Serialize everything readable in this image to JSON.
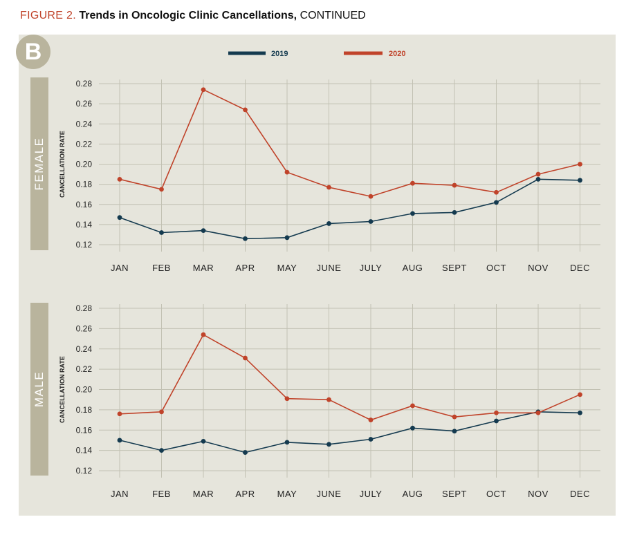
{
  "header": {
    "figure_label": "FIGURE 2.",
    "title": "Trends in Oncologic Clinic Cancellations,",
    "continued": "CONTINUED"
  },
  "panel_letter": "B",
  "legend": [
    {
      "name": "2019",
      "color": "#143a4f"
    },
    {
      "name": "2020",
      "color": "#c0432a"
    }
  ],
  "colors": {
    "panel_bg": "#e6e5dc",
    "grid": "#c2c1b3",
    "side_tab": "#b9b49d"
  },
  "chart_data": [
    {
      "type": "line",
      "panel": "FEMALE",
      "ylabel": "CANCELLATION RATE",
      "categories": [
        "JAN",
        "FEB",
        "MAR",
        "APR",
        "MAY",
        "JUNE",
        "JULY",
        "AUG",
        "SEPT",
        "OCT",
        "NOV",
        "DEC"
      ],
      "yticks": [
        "0.12",
        "0.14",
        "0.16",
        "0.18",
        "0.20",
        "0.22",
        "0.24",
        "0.26",
        "0.28"
      ],
      "ylim": [
        0.12,
        0.28
      ],
      "series": [
        {
          "name": "2019",
          "values": [
            0.147,
            0.132,
            0.134,
            0.126,
            0.127,
            0.141,
            0.143,
            0.151,
            0.152,
            0.162,
            0.185,
            0.184
          ]
        },
        {
          "name": "2020",
          "values": [
            0.185,
            0.175,
            0.274,
            0.254,
            0.192,
            0.177,
            0.168,
            0.181,
            0.179,
            0.172,
            0.19,
            0.2
          ]
        }
      ]
    },
    {
      "type": "line",
      "panel": "MALE",
      "ylabel": "CANCELLATION RATE",
      "categories": [
        "JAN",
        "FEB",
        "MAR",
        "APR",
        "MAY",
        "JUNE",
        "JULY",
        "AUG",
        "SEPT",
        "OCT",
        "NOV",
        "DEC"
      ],
      "yticks": [
        "0.12",
        "0.14",
        "0.16",
        "0.18",
        "0.20",
        "0.22",
        "0.24",
        "0.26",
        "0.28"
      ],
      "ylim": [
        0.12,
        0.28
      ],
      "series": [
        {
          "name": "2019",
          "values": [
            0.15,
            0.14,
            0.149,
            0.138,
            0.148,
            0.146,
            0.151,
            0.162,
            0.159,
            0.169,
            0.178,
            0.177
          ]
        },
        {
          "name": "2020",
          "values": [
            0.176,
            0.178,
            0.254,
            0.231,
            0.191,
            0.19,
            0.17,
            0.184,
            0.173,
            0.177,
            0.177,
            0.195
          ]
        }
      ]
    }
  ]
}
